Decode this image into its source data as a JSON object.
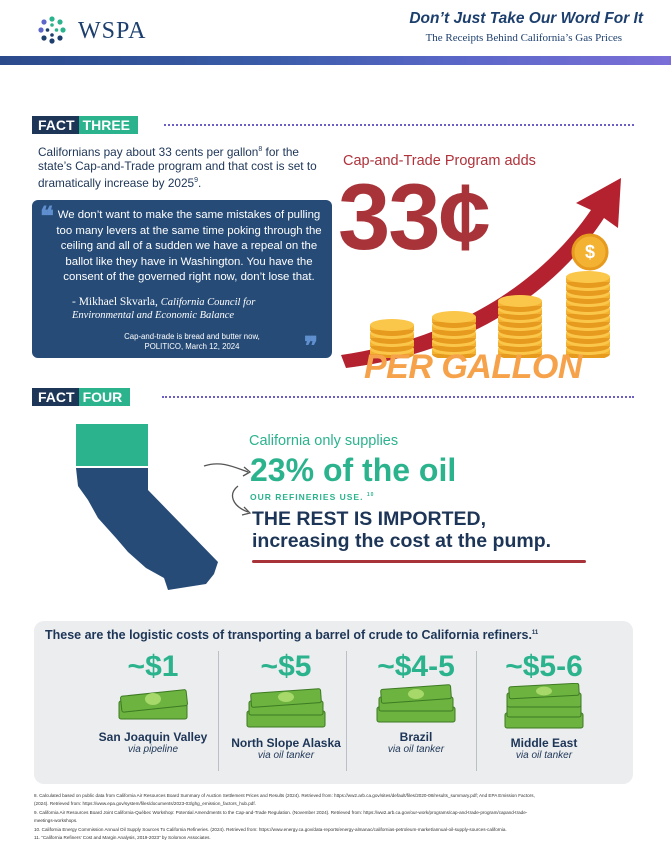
{
  "header": {
    "logo_text": "WSPA",
    "title": "Don’t Just Take Our Word For It",
    "subtitle": "The Receipts Behind California’s Gas Prices"
  },
  "fact_three": {
    "label_a": "FACT",
    "label_b": "THREE",
    "text_1": "Californians pay about 33 cents per gallon",
    "sup_1": "8",
    "text_2": " for the state’s Cap-and-Trade program and that cost is set to dramatically increase by 2025",
    "sup_2": "9",
    "text_3": ".",
    "quote": {
      "body": "We don’t want to make the same mistakes of pulling too many levers at the same time poking through the ceiling and all of a sudden we have a repeal on the ballot like they have in Washington. You have the consent of the governed right now, don’t lose that.",
      "author": "- Mikhael Skvarla, ",
      "org": "California Council for Environmental and Economic Balance",
      "source_1": "Cap-and-trade is bread and butter now,",
      "source_2": "POLITICO, March 12, 2024"
    },
    "cap_label": "Cap-and-Trade Program adds",
    "big_value": "33¢",
    "per_gallon": "PER GALLON"
  },
  "fact_four": {
    "label_a": "FACT",
    "label_b": "FOUR",
    "ca_only": "California only supplies",
    "pct": "23% of the oil",
    "refine": "OUR REFINERIES USE.",
    "refine_sup": "10",
    "rest_1": "THE REST IS IMPORTED,",
    "rest_2": "increasing the cost at the pump."
  },
  "logistics": {
    "title": "These are the logistic costs of transporting a barrel of crude to California refiners.",
    "title_sup": "11",
    "items": [
      {
        "price": "~$1",
        "place": "San Joaquin Valley",
        "via": "via pipeline"
      },
      {
        "price": "~$5",
        "place": "North Slope Alaska",
        "via": "via oil tanker"
      },
      {
        "price": "~$4-5",
        "place": "Brazil",
        "via": "via oil tanker"
      },
      {
        "price": "~$5-6",
        "place": "Middle East",
        "via": "via oil tanker"
      }
    ]
  },
  "footnotes": [
    "8. Calculated based on public data from California Air Resources Board Summary of Auction Settlement Prices and Results (2024). Retrieved from: https://ww2.arb.ca.gov/sites/default/files/2020-08/results_summary.pdf; And EPA Emission Factors,",
    "(2024). Retrieved from: https://www.epa.gov/system/files/documents/2023-03/ghg_emission_factors_hub.pdf.",
    "9. California Air Resources Board Joint California-Québec Workshop: Potential Amendments to the Cap-and-Trade Regulation. (November 2024). Retrieved from: https://ww2.arb.ca.gov/our-work/programs/cap-and-trade-program/capand-trade-",
    "meetings-workshops.",
    "10. California Energy Commission Annual Oil Supply Sources To California Refineries. (2024). Retrieved from: https://www.energy.ca.gov/data-reports/energy-almanac/californias-petroleum-market/annual-oil-supply-sources-california.",
    "11. “California Refiners’ Cost and Margin Analysis, 2019-2023” by Solomon Associates."
  ],
  "colors": {
    "navy": "#1d3557",
    "green": "#2bb38e",
    "red": "#a8343a",
    "orange": "#f6a24a",
    "quote_bg": "#264b77"
  }
}
